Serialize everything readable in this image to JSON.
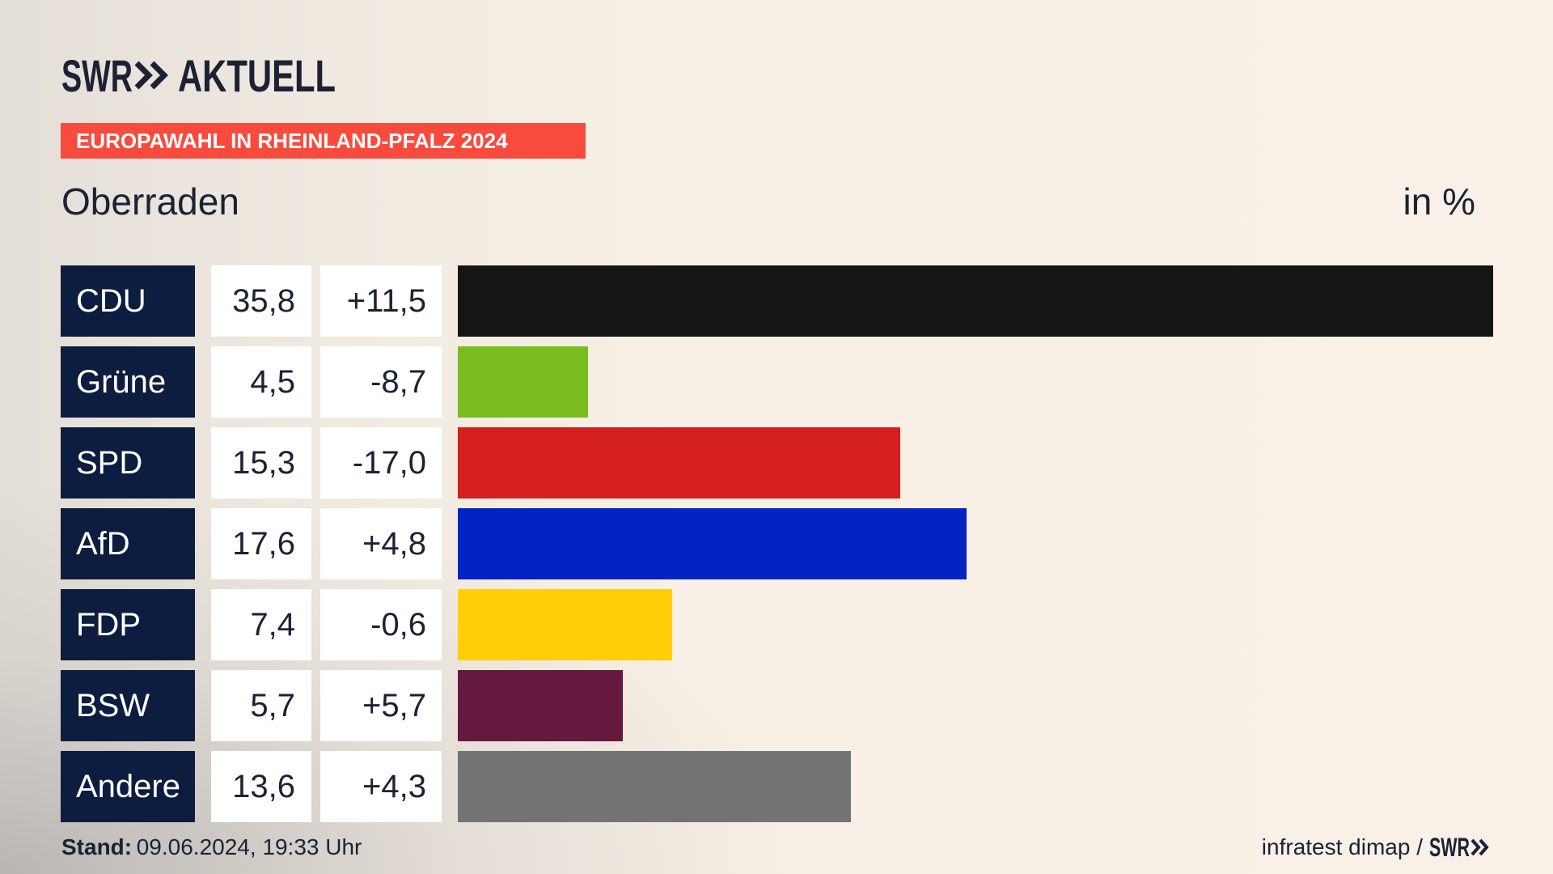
{
  "logo": {
    "brand": "SWR",
    "product": "AKTUELL"
  },
  "banner": {
    "title": "EUROPAWAHL IN RHEINLAND-PFALZ 2024",
    "color": "#f84b3e"
  },
  "location": "Oberraden",
  "unit": "in %",
  "chart_data": {
    "type": "bar",
    "orientation": "horizontal",
    "categories": [
      "CDU",
      "Grüne",
      "SPD",
      "AfD",
      "FDP",
      "BSW",
      "Andere"
    ],
    "values": [
      35.8,
      4.5,
      15.3,
      17.6,
      7.4,
      5.7,
      13.6
    ],
    "value_labels": [
      "35,8",
      "4,5",
      "15,3",
      "17,6",
      "7,4",
      "5,7",
      "13,6"
    ],
    "change_labels": [
      "+11,5",
      "-8,7",
      "-17,0",
      "+4,8",
      "-0,6",
      "+5,7",
      "+4,3"
    ],
    "colors": [
      "#151515",
      "#7abd1e",
      "#d51f1f",
      "#0423c4",
      "#ffce08",
      "#66193e",
      "#737373"
    ]
  },
  "footer": {
    "stand_label": "Stand:",
    "stand_value": "09.06.2024, 19:33 Uhr",
    "source": "infratest dimap /",
    "source_logo": "SWR"
  }
}
